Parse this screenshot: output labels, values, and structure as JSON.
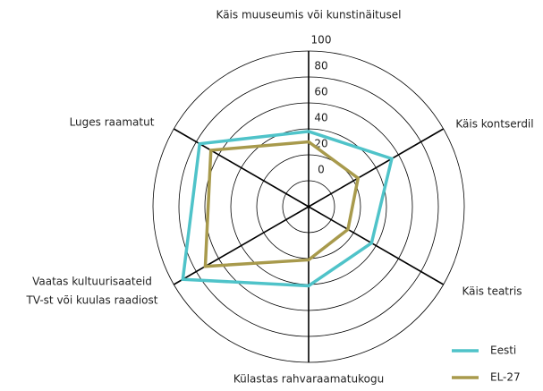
{
  "chart_data": {
    "type": "radar",
    "categories": [
      "Käis muuseumis või kunstinäitusel",
      "Käis kontserdil",
      "Käis teatris",
      "Külastas rahvaraamatukogu",
      [
        "Vaatas kultuurisaateid",
        "TV-st või kuulas raadiost"
      ],
      "Luges raamatut"
    ],
    "series": [
      {
        "name": "Eesti",
        "color": "#4fc3c9",
        "values": [
          38,
          54,
          36,
          41,
          92,
          77
        ]
      },
      {
        "name": "EL-27",
        "color": "#a89a4c",
        "values": [
          30,
          24,
          15,
          21,
          72,
          67
        ]
      }
    ],
    "rlim": [
      -20,
      100
    ],
    "rticks": [
      0,
      20,
      40,
      60,
      80,
      100
    ],
    "legend": "lower right"
  }
}
